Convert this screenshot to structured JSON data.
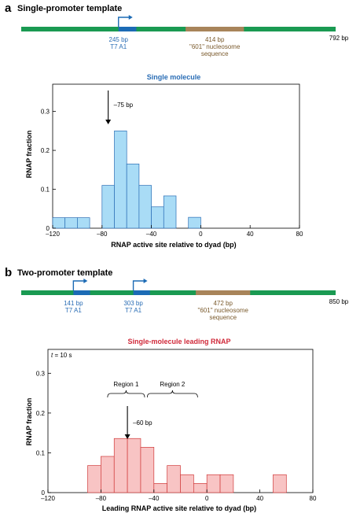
{
  "panel_a": {
    "letter": "a",
    "title": "Single-promoter template",
    "template": {
      "total_bp": 792,
      "end_label": "792 bp",
      "promoter": {
        "start_bp": 245,
        "label_bp": "245 bp",
        "label_name": "T7 A1"
      },
      "nucleosome": {
        "start_bp": 414,
        "label_bp": "414 bp",
        "label_line1": "\"601\" nucleosome",
        "label_line2": "sequence"
      }
    }
  },
  "panel_b": {
    "letter": "b",
    "title": "Two-promoter template",
    "template": {
      "total_bp": 850,
      "end_label": "850 bp",
      "promoters": [
        {
          "start_bp": 141,
          "label_bp": "141 bp",
          "label_name": "T7 A1"
        },
        {
          "start_bp": 303,
          "label_bp": "303 bp",
          "label_name": "T7 A1"
        }
      ],
      "nucleosome": {
        "start_bp": 472,
        "label_bp": "472 bp",
        "label_line1": "\"601\" nucleosome",
        "label_line2": "sequence"
      }
    }
  },
  "colors": {
    "dna_green": "#1a9a52",
    "promoter_blue": "#1c6bb5",
    "nucleosome_brown": "#a8845a",
    "bar_blue_fill": "#a9dcf6",
    "bar_blue_stroke": "#2a6db5",
    "bar_red_fill": "#f8c4c4",
    "bar_red_stroke": "#d03a3a"
  },
  "chart_data": [
    {
      "type": "bar",
      "title": "Single molecule",
      "xlabel": "RNAP active site relative to dyad (bp)",
      "ylabel": "RNAP fraction",
      "xlim": [
        -120,
        80
      ],
      "ylim": [
        0,
        0.37
      ],
      "xticks": [
        "–120",
        "–80",
        "–40",
        "0",
        "40",
        "80"
      ],
      "xtick_values": [
        -120,
        -80,
        -40,
        0,
        40,
        80
      ],
      "yticks": [
        "0",
        "0.1",
        "0.2",
        "0.3"
      ],
      "ytick_values": [
        0,
        0.1,
        0.2,
        0.3
      ],
      "bin_width": 10,
      "bins": [
        {
          "x0": -120,
          "value": 0.027
        },
        {
          "x0": -110,
          "value": 0.027
        },
        {
          "x0": -100,
          "value": 0.027
        },
        {
          "x0": -90,
          "value": 0.0
        },
        {
          "x0": -80,
          "value": 0.11
        },
        {
          "x0": -70,
          "value": 0.25
        },
        {
          "x0": -60,
          "value": 0.165
        },
        {
          "x0": -50,
          "value": 0.11
        },
        {
          "x0": -40,
          "value": 0.055
        },
        {
          "x0": -30,
          "value": 0.083
        },
        {
          "x0": -20,
          "value": 0.0
        },
        {
          "x0": -10,
          "value": 0.028
        }
      ],
      "annotation": {
        "label": "–75 bp",
        "x": -75
      }
    },
    {
      "type": "bar",
      "title": "Single-molecule leading RNAP",
      "corner_label": "t = 10 s",
      "xlabel": "Leading RNAP active site relative to dyad (bp)",
      "ylabel": "RNAP fraction",
      "xlim": [
        -120,
        80
      ],
      "ylim": [
        0,
        0.36
      ],
      "xticks": [
        "–120",
        "–80",
        "–40",
        "0",
        "40",
        "80"
      ],
      "xtick_values": [
        -120,
        -80,
        -40,
        0,
        40,
        80
      ],
      "yticks": [
        "0",
        "0.1",
        "0.2",
        "0.3"
      ],
      "ytick_values": [
        0,
        0.1,
        0.2,
        0.3
      ],
      "bin_width": 10,
      "bins": [
        {
          "x0": -90,
          "value": 0.068
        },
        {
          "x0": -80,
          "value": 0.091
        },
        {
          "x0": -70,
          "value": 0.136
        },
        {
          "x0": -60,
          "value": 0.136
        },
        {
          "x0": -50,
          "value": 0.114
        },
        {
          "x0": -40,
          "value": 0.023
        },
        {
          "x0": -30,
          "value": 0.068
        },
        {
          "x0": -20,
          "value": 0.045
        },
        {
          "x0": -10,
          "value": 0.023
        },
        {
          "x0": 0,
          "value": 0.045
        },
        {
          "x0": 10,
          "value": 0.045
        },
        {
          "x0": 20,
          "value": 0.0
        },
        {
          "x0": 30,
          "value": 0.0
        },
        {
          "x0": 40,
          "value": 0.0
        },
        {
          "x0": 50,
          "value": 0.045
        }
      ],
      "annotation": {
        "label": "–60 bp",
        "x": -60
      },
      "regions": [
        {
          "label": "Region 1",
          "x0": -75,
          "x1": -47
        },
        {
          "label": "Region 2",
          "x0": -45,
          "x1": -7
        }
      ]
    }
  ]
}
